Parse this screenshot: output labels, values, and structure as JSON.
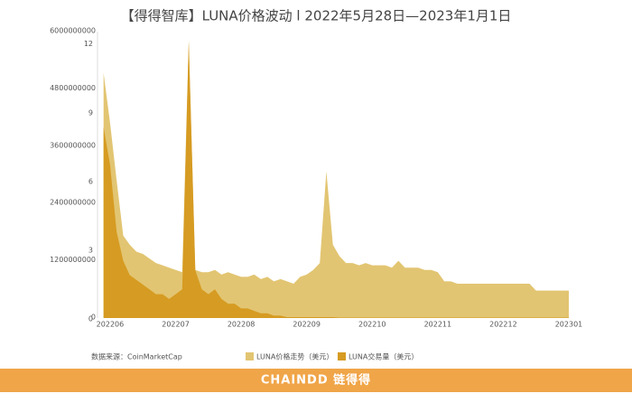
{
  "chart_data": {
    "type": "area",
    "title": "【得得智库】LUNA价格波动 l 2022年5月28日—2023年1月1日",
    "source": "数据来源：CoinMarketCap",
    "footer": "CHAINDD 链得得",
    "categories": [
      null,
      "202206",
      null,
      null,
      null,
      null,
      null,
      null,
      null,
      null,
      null,
      "202207",
      null,
      null,
      null,
      null,
      null,
      null,
      null,
      null,
      null,
      "202208",
      null,
      null,
      null,
      null,
      null,
      null,
      null,
      null,
      null,
      "202209",
      null,
      null,
      null,
      null,
      null,
      null,
      null,
      null,
      null,
      "202210",
      null,
      null,
      null,
      null,
      null,
      null,
      null,
      null,
      null,
      "202211",
      null,
      null,
      null,
      null,
      null,
      null,
      null,
      null,
      null,
      "202212",
      null,
      null,
      null,
      null,
      null,
      null,
      null,
      null,
      null,
      "202301"
    ],
    "ylim": [
      0,
      12.5
    ],
    "yticks": [
      0,
      3,
      6,
      9,
      12
    ],
    "y2lim": [
      0,
      6000000000
    ],
    "y2ticks": [
      0,
      1200000000,
      2400000000,
      3600000000,
      4800000000,
      6000000000
    ],
    "grid": false,
    "legend": "bottom",
    "series": [
      {
        "name": "LUNA价格走势（美元）",
        "color": "#e2c572",
        "values": [
          10.7,
          8.5,
          6.0,
          3.6,
          3.2,
          2.9,
          2.8,
          2.6,
          2.4,
          2.3,
          2.2,
          2.1,
          2.0,
          12.1,
          2.1,
          2.0,
          2.0,
          2.1,
          1.9,
          2.0,
          1.9,
          1.8,
          1.8,
          1.9,
          1.7,
          1.8,
          1.6,
          1.7,
          1.6,
          1.5,
          1.8,
          1.9,
          2.1,
          2.4,
          6.4,
          3.2,
          2.7,
          2.4,
          2.4,
          2.3,
          2.4,
          2.3,
          2.3,
          2.3,
          2.2,
          2.5,
          2.2,
          2.2,
          2.2,
          2.1,
          2.1,
          2.0,
          1.6,
          1.6,
          1.5,
          1.5,
          1.5,
          1.5,
          1.5,
          1.5,
          1.5,
          1.5,
          1.5,
          1.5,
          1.5,
          1.5,
          1.2,
          1.2,
          1.2,
          1.2,
          1.2,
          1.2
        ]
      },
      {
        "name": "LUNA交易量（美元）",
        "color": "#d69b22",
        "axis": "y2",
        "values": [
          4000000000,
          3200000000,
          1800000000,
          1200000000,
          900000000,
          800000000,
          700000000,
          600000000,
          500000000,
          500000000,
          400000000,
          500000000,
          600000000,
          5800000000,
          1000000000,
          600000000,
          500000000,
          600000000,
          400000000,
          300000000,
          300000000,
          200000000,
          200000000,
          150000000,
          100000000,
          100000000,
          50000000,
          50000000,
          20000000,
          20000000,
          20000000,
          20000000,
          20000000,
          20000000,
          20000000,
          20000000,
          10000000,
          10000000,
          10000000,
          10000000,
          10000000,
          10000000,
          10000000,
          10000000,
          10000000,
          10000000,
          10000000,
          10000000,
          10000000,
          10000000,
          10000000,
          10000000,
          10000000,
          10000000,
          10000000,
          10000000,
          10000000,
          10000000,
          10000000,
          10000000,
          10000000,
          10000000,
          10000000,
          10000000,
          10000000,
          10000000,
          10000000,
          10000000,
          10000000,
          10000000,
          10000000,
          10000000
        ]
      }
    ]
  }
}
